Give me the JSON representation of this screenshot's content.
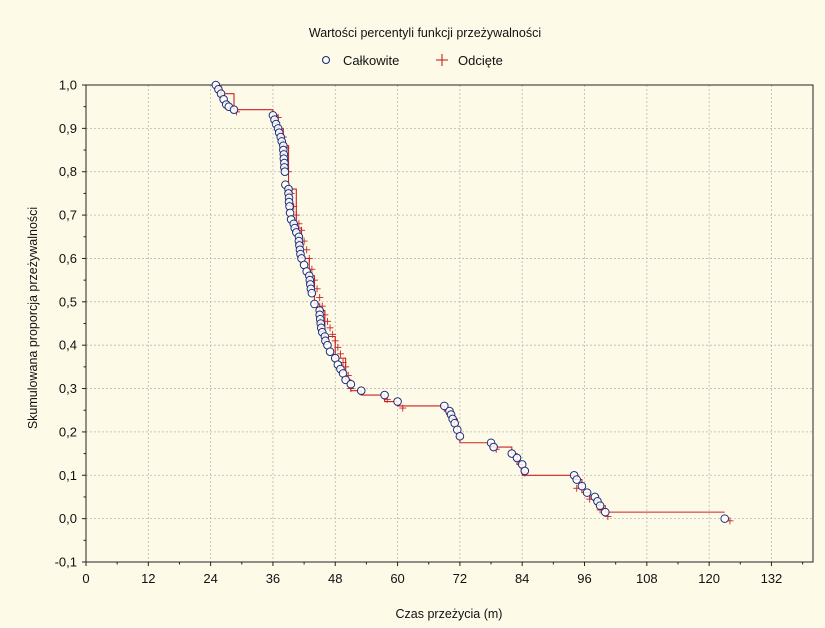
{
  "chart_data": {
    "type": "line",
    "title": "Wartości percentyli funkcji przeżywalności",
    "xlabel": "Czas przeżycia (m)",
    "ylabel": "Skumulowana proporcja przeżywalności",
    "xlim": [
      0,
      140
    ],
    "ylim": [
      -0.1,
      1.0
    ],
    "x_ticks": [
      "0",
      "12",
      "24",
      "36",
      "48",
      "60",
      "72",
      "84",
      "96",
      "108",
      "120",
      "132"
    ],
    "x_tick_values": [
      0,
      12,
      24,
      36,
      48,
      60,
      72,
      84,
      96,
      108,
      120,
      132
    ],
    "y_ticks": [
      "-0,1",
      "0,0",
      "0,1",
      "0,2",
      "0,3",
      "0,4",
      "0,5",
      "0,6",
      "0,7",
      "0,8",
      "0,9",
      "1,0"
    ],
    "y_tick_values": [
      -0.1,
      0.0,
      0.1,
      0.2,
      0.3,
      0.4,
      0.5,
      0.6,
      0.7,
      0.8,
      0.9,
      1.0
    ],
    "grid": true,
    "legend": "top-center",
    "colors": {
      "line": "#cc2222",
      "complete_marker": "#1f2f7a",
      "censored_marker": "#cc2222",
      "grid": "#b8b8b8"
    },
    "series": [
      {
        "name": "Całkowite",
        "marker": "circle",
        "x": [
          25,
          25.5,
          26,
          26.5,
          27,
          27.5,
          28.5,
          36,
          36.3,
          36.6,
          37,
          37.2,
          37.5,
          37.7,
          38,
          38,
          38.1,
          38.1,
          38.2,
          38.2,
          38.3,
          38.4,
          39,
          39,
          39.1,
          39.1,
          39.2,
          39.3,
          39.5,
          40,
          40.2,
          40.5,
          41,
          41,
          41.1,
          41.2,
          41.3,
          41.5,
          42,
          42.5,
          43,
          43.1,
          43.2,
          43.3,
          43.5,
          44,
          45,
          45,
          45.1,
          45.2,
          45.3,
          45.5,
          46,
          46.1,
          46.5,
          47,
          48,
          48.5,
          49,
          49.5,
          50,
          51,
          53,
          57.5,
          60,
          69,
          70,
          70.3,
          70.6,
          71,
          71.5,
          72,
          78,
          78.5,
          82,
          83,
          84,
          84.5,
          94,
          94.5,
          95.5,
          96.5,
          98,
          98.5,
          99,
          100,
          123
        ],
        "y": [
          1.0,
          0.99,
          0.98,
          0.967,
          0.955,
          0.95,
          0.943,
          0.93,
          0.92,
          0.91,
          0.9,
          0.89,
          0.88,
          0.87,
          0.86,
          0.85,
          0.84,
          0.83,
          0.82,
          0.81,
          0.8,
          0.77,
          0.76,
          0.75,
          0.74,
          0.73,
          0.72,
          0.705,
          0.69,
          0.68,
          0.67,
          0.66,
          0.65,
          0.64,
          0.63,
          0.62,
          0.61,
          0.6,
          0.585,
          0.57,
          0.56,
          0.55,
          0.54,
          0.53,
          0.52,
          0.495,
          0.48,
          0.47,
          0.46,
          0.45,
          0.44,
          0.43,
          0.42,
          0.41,
          0.4,
          0.385,
          0.37,
          0.355,
          0.345,
          0.335,
          0.32,
          0.31,
          0.295,
          0.285,
          0.27,
          0.26,
          0.248,
          0.24,
          0.23,
          0.22,
          0.205,
          0.19,
          0.175,
          0.165,
          0.15,
          0.14,
          0.125,
          0.11,
          0.1,
          0.09,
          0.075,
          0.06,
          0.05,
          0.04,
          0.03,
          0.015,
          0.0
        ]
      },
      {
        "name": "Odcięte",
        "marker": "plus",
        "x": [
          26,
          27.5,
          29,
          37,
          38,
          38.5,
          39,
          39.5,
          40,
          40.5,
          41,
          41.5,
          42,
          42.5,
          43,
          43.5,
          44,
          44.5,
          45,
          45.5,
          46,
          46.5,
          47,
          47.5,
          48,
          48.5,
          49,
          49.5,
          50,
          50.5,
          51,
          58,
          61,
          70,
          71,
          72,
          79,
          83,
          84.5,
          94.5,
          97,
          99,
          100.5,
          124
        ],
        "y": [
          0.975,
          0.955,
          0.938,
          0.925,
          0.88,
          0.855,
          0.8,
          0.75,
          0.72,
          0.7,
          0.68,
          0.665,
          0.64,
          0.62,
          0.6,
          0.575,
          0.55,
          0.53,
          0.51,
          0.49,
          0.47,
          0.455,
          0.44,
          0.425,
          0.41,
          0.395,
          0.38,
          0.36,
          0.35,
          0.33,
          0.3,
          0.275,
          0.255,
          0.24,
          0.215,
          0.185,
          0.16,
          0.135,
          0.105,
          0.07,
          0.045,
          0.02,
          0.005,
          -0.005
        ]
      }
    ],
    "km_steps": [
      [
        24.5,
        1.0
      ],
      [
        26,
        0.98
      ],
      [
        28.5,
        0.943
      ],
      [
        36,
        0.93
      ],
      [
        37,
        0.9
      ],
      [
        38,
        0.86
      ],
      [
        39,
        0.76
      ],
      [
        40.5,
        0.67
      ],
      [
        41.5,
        0.6
      ],
      [
        43,
        0.56
      ],
      [
        44,
        0.495
      ],
      [
        45,
        0.48
      ],
      [
        46,
        0.42
      ],
      [
        48,
        0.37
      ],
      [
        50,
        0.32
      ],
      [
        51,
        0.295
      ],
      [
        53,
        0.285
      ],
      [
        57.5,
        0.27
      ],
      [
        60,
        0.26
      ],
      [
        69,
        0.248
      ],
      [
        70.5,
        0.23
      ],
      [
        71.5,
        0.19
      ],
      [
        72,
        0.175
      ],
      [
        78,
        0.165
      ],
      [
        82,
        0.15
      ],
      [
        83,
        0.125
      ],
      [
        84,
        0.1
      ],
      [
        94,
        0.09
      ],
      [
        95.5,
        0.06
      ],
      [
        97,
        0.045
      ],
      [
        98.5,
        0.03
      ],
      [
        100,
        0.015
      ],
      [
        123,
        0.015
      ]
    ]
  }
}
